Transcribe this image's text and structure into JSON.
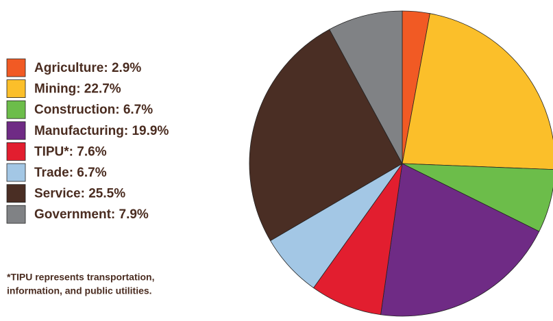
{
  "chart_data": {
    "type": "pie",
    "categories": [
      "Agriculture: 2.9%",
      "Mining: 22.7%",
      "Construction: 6.7%",
      "Manufacturing: 19.9%",
      "TIPU*: 7.6%",
      "Trade: 6.7%",
      "Service: 25.5%",
      "Government: 7.9%"
    ],
    "values": [
      2.9,
      22.7,
      6.7,
      19.9,
      7.6,
      6.7,
      25.5,
      7.9
    ],
    "colors": [
      "#f15a24",
      "#fbbf2a",
      "#6cbd4a",
      "#6f2b85",
      "#e21e2f",
      "#a3c7e5",
      "#4a2e24",
      "#808285"
    ],
    "legend": "left",
    "note": [
      "*TIPU represents transportation,",
      "information, and public utilities."
    ]
  }
}
